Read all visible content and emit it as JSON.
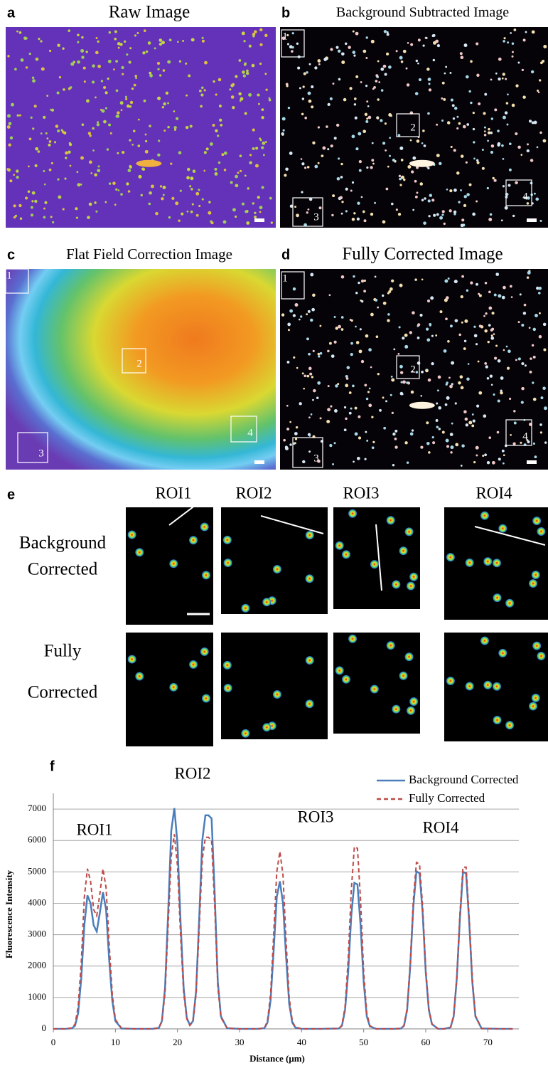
{
  "panels": [
    {
      "letter": "a",
      "title": "Raw Image",
      "boxes": []
    },
    {
      "letter": "b",
      "title": "Background Subtracted Image",
      "boxes": [
        "1",
        "2",
        "3",
        "4"
      ]
    },
    {
      "letter": "c",
      "title": "Flat Field Correction Image",
      "boxes": [
        "1",
        "2",
        "3",
        "4"
      ]
    },
    {
      "letter": "d",
      "title": "Fully Corrected Image",
      "boxes": [
        "1",
        "2",
        "3",
        "4"
      ]
    }
  ],
  "roi_grid": {
    "letter": "e",
    "columns": [
      "ROI1",
      "ROI2",
      "ROI3",
      "ROI4"
    ],
    "rows": [
      [
        "Background",
        "Corrected"
      ],
      [
        "Fully",
        "Corrected"
      ]
    ]
  },
  "chart_data": {
    "type": "line",
    "letter": "f",
    "x_label": "Distance (μm)",
    "y_label": "Fluorescence Intensity",
    "annotations": [
      "ROI1",
      "ROI2",
      "ROI3",
      "ROI4"
    ],
    "x": [
      0,
      2,
      3,
      3.5,
      4,
      4.5,
      5,
      5.5,
      6,
      6.5,
      7,
      7.5,
      8,
      8.5,
      9,
      9.5,
      10,
      11,
      13,
      16,
      17,
      17.5,
      18,
      18.5,
      19,
      19.5,
      20,
      20.5,
      21,
      21.5,
      22,
      22.5,
      23,
      23.5,
      24,
      24.5,
      25,
      25.5,
      26,
      26.5,
      27,
      28,
      30,
      33,
      34,
      34.5,
      35,
      35.5,
      36,
      36.5,
      37,
      37.5,
      38,
      38.5,
      39,
      40,
      43,
      46,
      46.5,
      47,
      47.5,
      48,
      48.5,
      49,
      49.5,
      50,
      50.5,
      51,
      52,
      55,
      56,
      56.5,
      57,
      57.5,
      58,
      58.5,
      59,
      59.5,
      60,
      60.5,
      61,
      62,
      63,
      64,
      64.5,
      65,
      65.5,
      66,
      66.5,
      67,
      67.5,
      68,
      69,
      72,
      74
    ],
    "series": [
      {
        "name": "Background Corrected",
        "color": "#4a7ebb",
        "line_style": "solid",
        "values": [
          0,
          0,
          20,
          100,
          500,
          1600,
          3300,
          4250,
          4000,
          3300,
          3100,
          3700,
          4350,
          3800,
          2200,
          900,
          250,
          10,
          0,
          0,
          30,
          250,
          1300,
          3700,
          6300,
          7030,
          5900,
          3400,
          1300,
          350,
          120,
          250,
          1200,
          3500,
          6000,
          6800,
          6800,
          6700,
          4300,
          1500,
          400,
          20,
          0,
          0,
          20,
          200,
          900,
          2500,
          4200,
          4700,
          4000,
          2300,
          800,
          200,
          40,
          0,
          0,
          10,
          100,
          600,
          1800,
          3600,
          4650,
          4600,
          3300,
          1500,
          400,
          80,
          0,
          0,
          10,
          100,
          600,
          2000,
          3900,
          5020,
          4950,
          3700,
          1800,
          600,
          150,
          0,
          0,
          50,
          400,
          1600,
          3500,
          5000,
          4950,
          3400,
          1500,
          400,
          10,
          0,
          0
        ]
      },
      {
        "name": "Fully Corrected",
        "color": "#be4b48",
        "line_style": "dashed",
        "values": [
          0,
          0,
          30,
          150,
          700,
          2100,
          4200,
          5100,
          4700,
          3800,
          3600,
          4300,
          5100,
          4500,
          2700,
          1100,
          300,
          15,
          0,
          0,
          30,
          230,
          1150,
          3300,
          5500,
          6200,
          5200,
          3000,
          1150,
          320,
          110,
          230,
          1100,
          3200,
          5400,
          6100,
          6100,
          6000,
          3900,
          1350,
          360,
          20,
          0,
          0,
          25,
          250,
          1100,
          3000,
          5000,
          5650,
          4900,
          2800,
          1000,
          250,
          50,
          0,
          0,
          10,
          120,
          700,
          2200,
          4400,
          5800,
          5750,
          4100,
          1800,
          500,
          100,
          0,
          0,
          10,
          110,
          650,
          2100,
          4100,
          5300,
          5250,
          3900,
          1900,
          650,
          160,
          0,
          0,
          55,
          420,
          1650,
          3650,
          5150,
          5150,
          3550,
          1600,
          420,
          10,
          0,
          0
        ]
      }
    ],
    "xlim": [
      0,
      75
    ],
    "xticks": [
      0,
      10,
      20,
      30,
      40,
      50,
      60,
      70
    ],
    "ylim": [
      0,
      7500
    ],
    "yticks": [
      0,
      1000,
      2000,
      3000,
      4000,
      5000,
      6000,
      7000
    ],
    "grid": true,
    "legend": "top-right"
  }
}
